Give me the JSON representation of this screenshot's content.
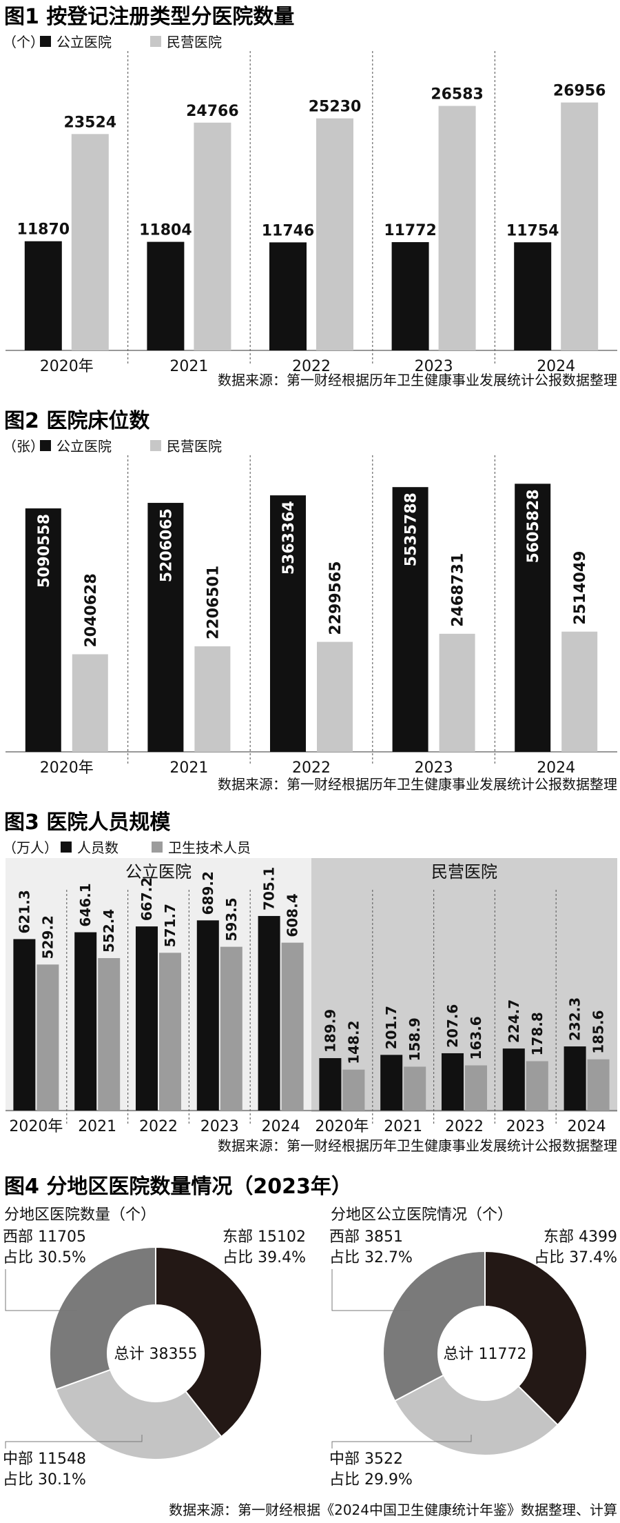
{
  "chart_data": [
    {
      "type": "bar",
      "title": "图1 按登记注册类型分医院数量",
      "unit": "（个）",
      "categories": [
        "2020年",
        "2021",
        "2022",
        "2023",
        "2024"
      ],
      "series": [
        {
          "name": "公立医院",
          "color": "#111111",
          "values": [
            11870,
            11804,
            11746,
            11772,
            11754
          ]
        },
        {
          "name": "民营医院",
          "color": "#c7c7c7",
          "values": [
            23524,
            24766,
            25230,
            26583,
            26956
          ]
        }
      ],
      "ylim": [
        0,
        30000
      ],
      "source": "数据来源：第一财经根据历年卫生健康事业发展统计公报数据整理"
    },
    {
      "type": "bar",
      "title": "图2 医院床位数",
      "unit": "（张）",
      "categories": [
        "2020年",
        "2021",
        "2022",
        "2023",
        "2024"
      ],
      "series": [
        {
          "name": "公立医院",
          "color": "#111111",
          "values": [
            5090558,
            5206065,
            5363364,
            5535788,
            5605828
          ]
        },
        {
          "name": "民营医院",
          "color": "#c7c7c7",
          "values": [
            2040628,
            2206501,
            2299565,
            2468731,
            2514049
          ]
        }
      ],
      "ylim": [
        0,
        6000000
      ],
      "source": "数据来源：第一财经根据历年卫生健康事业发展统计公报数据整理"
    },
    {
      "type": "bar",
      "title": "图3 医院人员规模",
      "unit": "（万人）",
      "series_names": [
        {
          "name": "人员数",
          "color": "#111111"
        },
        {
          "name": "卫生技术人员",
          "color": "#9c9c9c"
        }
      ],
      "groups": [
        {
          "label": "公立医院",
          "categories": [
            "2020年",
            "2021",
            "2022",
            "2023",
            "2024"
          ],
          "series": [
            {
              "name": "人员数",
              "values": [
                621.3,
                646.1,
                667.2,
                689.2,
                705.1
              ]
            },
            {
              "name": "卫生技术人员",
              "values": [
                529.2,
                552.4,
                571.7,
                593.5,
                608.4
              ]
            }
          ]
        },
        {
          "label": "民营医院",
          "categories": [
            "2020年",
            "2021",
            "2022",
            "2023",
            "2024"
          ],
          "series": [
            {
              "name": "人员数",
              "values": [
                189.9,
                201.7,
                207.6,
                224.7,
                232.3
              ]
            },
            {
              "name": "卫生技术人员",
              "values": [
                148.2,
                158.9,
                163.6,
                178.8,
                185.6
              ]
            }
          ]
        }
      ],
      "ylim": [
        0,
        800
      ],
      "source": "数据来源：第一财经根据历年卫生健康事业发展统计公报数据整理"
    },
    {
      "type": "pie",
      "title": "图4 分地区医院数量情况（2023年）",
      "charts": [
        {
          "subtitle": "分地区医院数量（个）",
          "center_label": "总计",
          "total": 38355,
          "slices": [
            {
              "region": "东部",
              "value": 15102,
              "share": "占比 39.4%",
              "color": "#231815"
            },
            {
              "region": "中部",
              "value": 11548,
              "share": "占比 30.1%",
              "color": "#c4c4c4"
            },
            {
              "region": "西部",
              "value": 11705,
              "share": "占比 30.5%",
              "color": "#7a7a7a"
            }
          ]
        },
        {
          "subtitle": "分地区公立医院情况（个）",
          "center_label": "总计",
          "total": 11772,
          "slices": [
            {
              "region": "东部",
              "value": 4399,
              "share": "占比 37.4%",
              "color": "#231815"
            },
            {
              "region": "中部",
              "value": 3522,
              "share": "占比 29.9%",
              "color": "#c4c4c4"
            },
            {
              "region": "西部",
              "value": 3851,
              "share": "占比 32.7%",
              "color": "#7a7a7a"
            }
          ]
        }
      ],
      "source": "数据来源：第一财经根据《2024中国卫生健康统计年鉴》数据整理、计算"
    }
  ]
}
